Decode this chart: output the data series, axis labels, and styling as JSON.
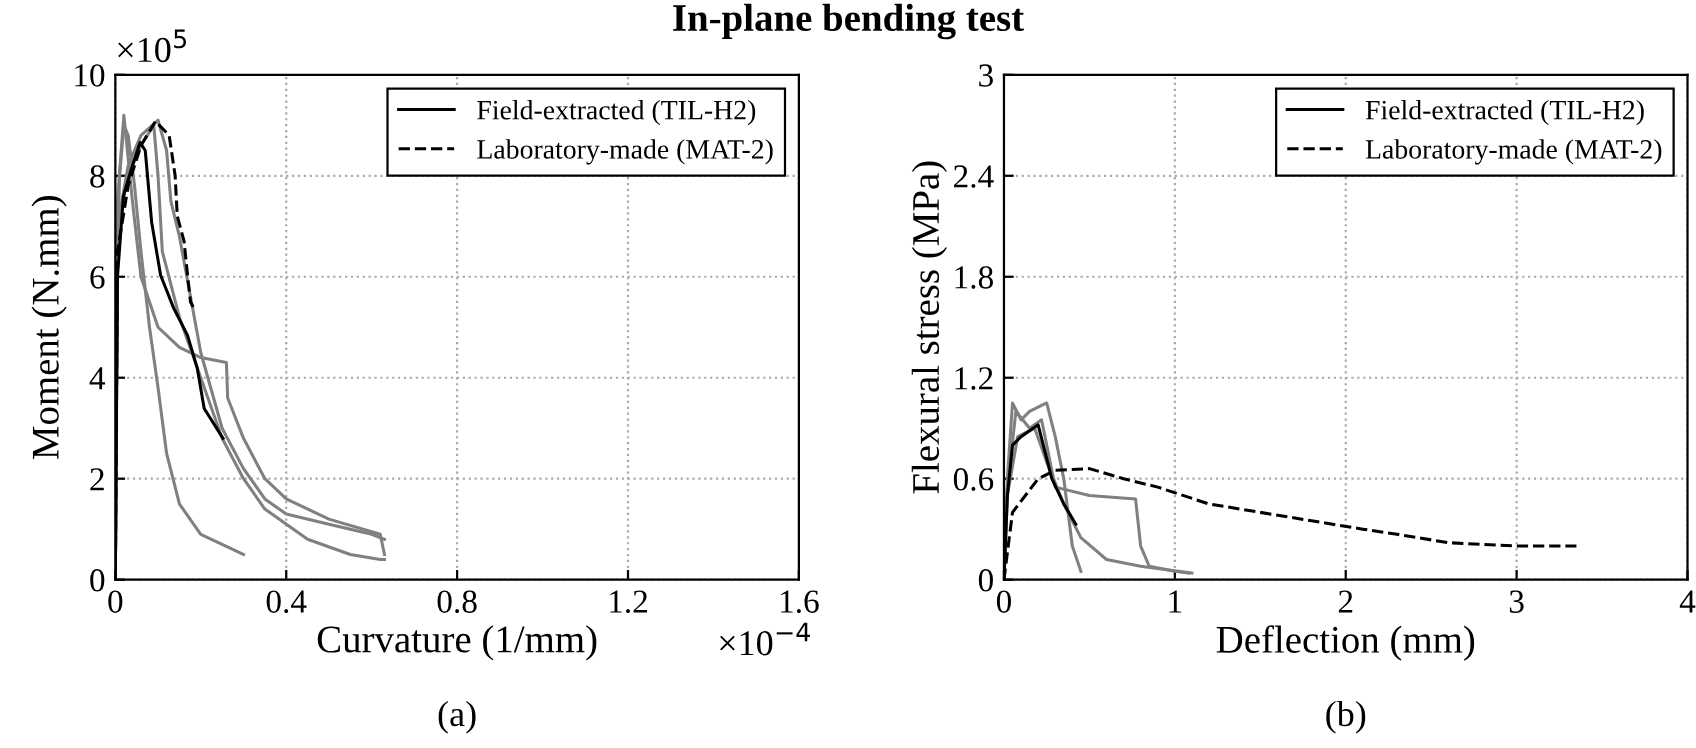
{
  "chart_data": [
    {
      "type": "line",
      "title": "In-plane bending test",
      "xlabel": "Curvature (1/mm)",
      "ylabel": "Moment (N.mm)",
      "xlim": [
        0,
        1.6
      ],
      "ylim": [
        0,
        10
      ],
      "xticks": [
        0,
        0.4,
        0.8,
        1.2,
        1.6
      ],
      "yticks": [
        0,
        2,
        4,
        6,
        8,
        10
      ],
      "grid": true,
      "legend": "top right",
      "annotations": [
        "×10$^{5}$",
        "×10$^{−4}$",
        "(a)"
      ],
      "series": [
        {
          "color": "#808080",
          "x": [
            0,
            0.005,
            0.01,
            0.02,
            0.03,
            0.045,
            0.06,
            0.08,
            0.1,
            0.12,
            0.15,
            0.2,
            0.25,
            0.3
          ],
          "values": [
            0,
            6.5,
            8.0,
            9.0,
            8.8,
            7.8,
            6.5,
            5.0,
            3.8,
            2.5,
            1.5,
            0.9,
            0.7,
            0.5
          ]
        },
        {
          "color": "#808080",
          "x": [
            0,
            0.005,
            0.03,
            0.06,
            0.09,
            0.1,
            0.11,
            0.15,
            0.2,
            0.25,
            0.3,
            0.35,
            0.45,
            0.55,
            0.62,
            0.63
          ],
          "values": [
            0,
            7.0,
            8.0,
            8.6,
            9.0,
            8.0,
            6.5,
            5.2,
            4.0,
            2.8,
            2.0,
            1.4,
            0.8,
            0.5,
            0.4,
            0.4
          ]
        },
        {
          "color": "#808080",
          "x": [
            0,
            0.005,
            0.02,
            0.04,
            0.06,
            0.1,
            0.15,
            0.2,
            0.26,
            0.263,
            0.3,
            0.35,
            0.4,
            0.5,
            0.62,
            0.63
          ],
          "values": [
            0,
            7.5,
            9.2,
            7.5,
            6.0,
            5.0,
            4.6,
            4.4,
            4.3,
            3.6,
            2.8,
            2.0,
            1.6,
            1.2,
            0.9,
            0.5
          ]
        },
        {
          "color": "#808080",
          "x": [
            0,
            0.005,
            0.03,
            0.06,
            0.1,
            0.12,
            0.13,
            0.15,
            0.2,
            0.25,
            0.3,
            0.35,
            0.4,
            0.5,
            0.6,
            0.63
          ],
          "values": [
            0,
            7.0,
            8.2,
            8.8,
            9.1,
            8.5,
            7.5,
            6.8,
            4.5,
            3.0,
            2.2,
            1.6,
            1.3,
            1.1,
            0.9,
            0.8
          ]
        },
        {
          "name": "Field-extracted (TIL-H2)",
          "color": "#000000",
          "line_style": "solid",
          "x": [
            0,
            0.005,
            0.019,
            0.04,
            0.058,
            0.07,
            0.085,
            0.106,
            0.137,
            0.169,
            0.192,
            0.208,
            0.252
          ],
          "values": [
            0,
            6.0,
            7.6,
            8.2,
            8.66,
            8.5,
            7.08,
            6.03,
            5.37,
            4.84,
            4.18,
            3.39,
            2.8
          ]
        },
        {
          "name": "Laboratory-made (MAT-2)",
          "color": "#000000",
          "line_style": "dashed",
          "x": [
            0,
            0.005,
            0.03,
            0.06,
            0.094,
            0.126,
            0.14,
            0.145,
            0.161,
            0.169,
            0.176,
            0.186
          ],
          "values": [
            0,
            6.5,
            7.8,
            8.6,
            9.08,
            8.8,
            8.0,
            7.2,
            6.7,
            6.03,
            5.5,
            5.34
          ]
        }
      ]
    },
    {
      "type": "line",
      "xlabel": "Deflection (mm)",
      "ylabel": "Flexural stress (MPa)",
      "xlim": [
        0,
        4
      ],
      "ylim": [
        0,
        3
      ],
      "xticks": [
        0,
        1,
        2,
        3,
        4
      ],
      "yticks": [
        0,
        0.6,
        1.2,
        1.8,
        2.4,
        3
      ],
      "grid": true,
      "legend": "top right",
      "annotations": [
        "(b)"
      ],
      "series": [
        {
          "color": "#808080",
          "x": [
            0,
            0.02,
            0.05,
            0.1,
            0.15,
            0.25,
            0.3,
            0.35,
            0.4,
            0.45
          ],
          "values": [
            0,
            0.6,
            1.05,
            0.95,
            1.0,
            1.05,
            0.85,
            0.6,
            0.2,
            0.05
          ]
        },
        {
          "color": "#808080",
          "x": [
            0,
            0.02,
            0.07,
            0.15,
            0.22,
            0.3,
            0.5,
            0.77,
            0.8,
            0.85,
            1.0,
            1.08
          ],
          "values": [
            0,
            0.55,
            1.0,
            0.9,
            0.95,
            0.55,
            0.5,
            0.48,
            0.2,
            0.08,
            0.05,
            0.04
          ]
        },
        {
          "color": "#808080",
          "x": [
            0,
            0.02,
            0.08,
            0.18,
            0.25,
            0.35,
            0.45,
            0.6,
            0.8,
            1.1
          ],
          "values": [
            0,
            0.5,
            0.85,
            0.9,
            0.7,
            0.45,
            0.25,
            0.12,
            0.08,
            0.04
          ]
        },
        {
          "name": "Field-extracted (TIL-H2)",
          "color": "#000000",
          "line_style": "solid",
          "x": [
            0,
            0.02,
            0.05,
            0.1,
            0.2,
            0.28,
            0.35,
            0.42
          ],
          "values": [
            0,
            0.5,
            0.8,
            0.85,
            0.92,
            0.6,
            0.45,
            0.33
          ]
        },
        {
          "name": "Laboratory-made (MAT-2)",
          "color": "#000000",
          "line_style": "dashed",
          "x": [
            0,
            0.05,
            0.2,
            0.3,
            0.5,
            0.7,
            0.9,
            1.2,
            1.5,
            1.8,
            2.1,
            2.3,
            2.6,
            3.0,
            3.35
          ],
          "values": [
            0,
            0.4,
            0.6,
            0.65,
            0.66,
            0.6,
            0.55,
            0.45,
            0.4,
            0.35,
            0.3,
            0.27,
            0.22,
            0.2,
            0.2
          ]
        }
      ]
    }
  ]
}
